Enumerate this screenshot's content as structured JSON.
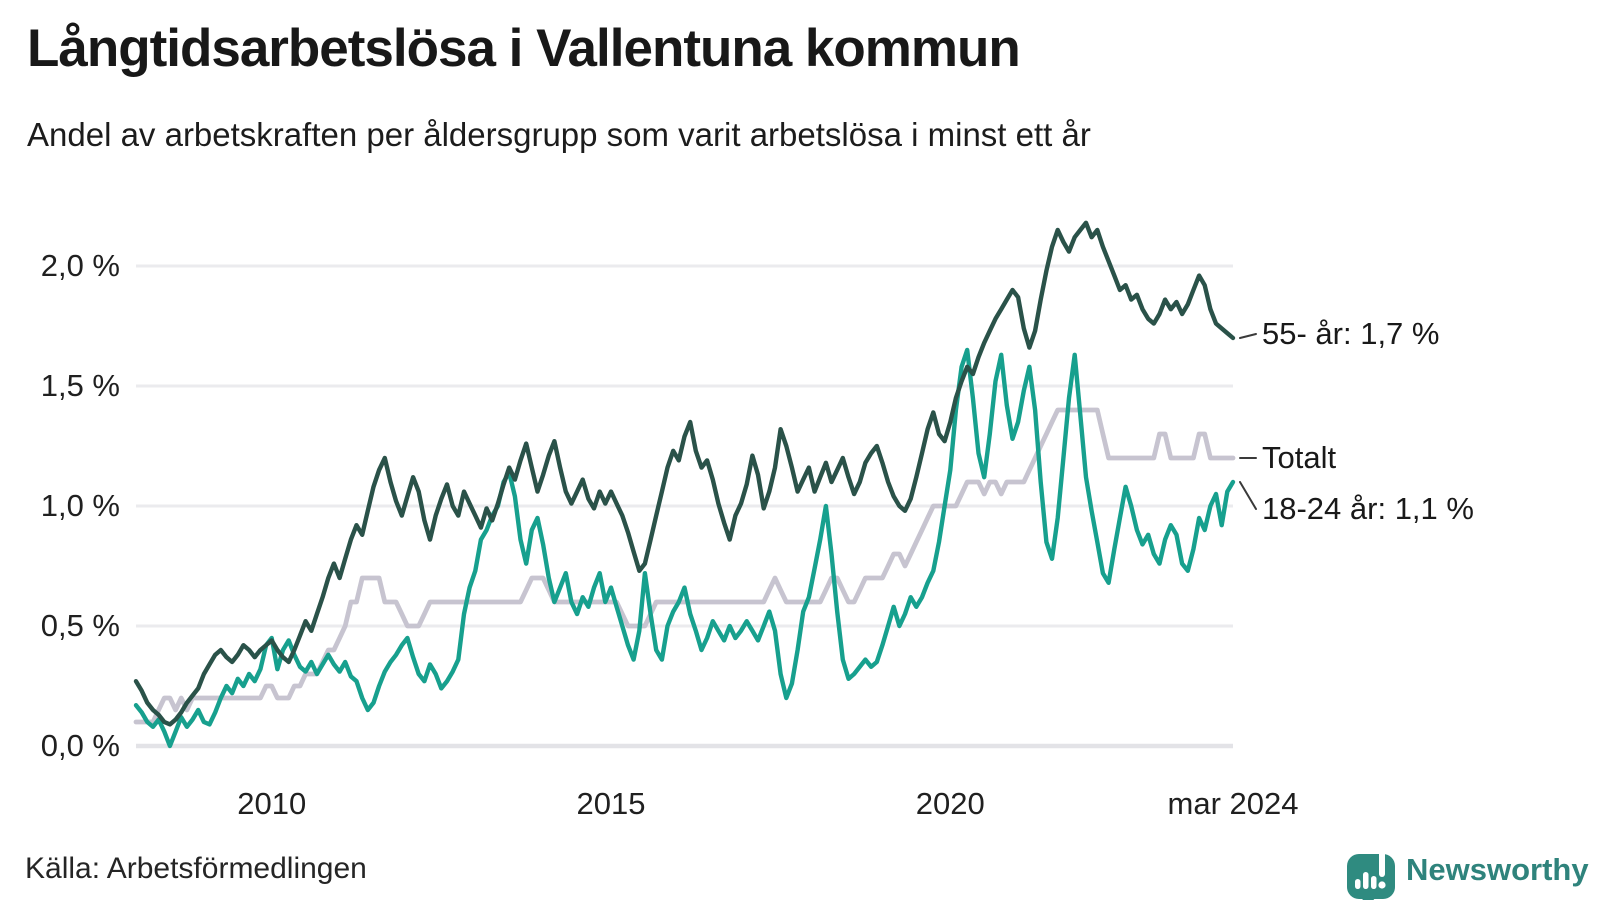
{
  "header": {
    "title": "Långtidsarbetslösa i Vallentuna kommun",
    "subtitle": "Andel av arbetskraften per åldersgrupp som varit arbetslösa i minst ett år"
  },
  "footer": {
    "source": "Källa: Arbetsförmedlingen",
    "brand_name": "Newsworthy",
    "brand_color": "#2f8b80"
  },
  "chart_data": {
    "type": "line",
    "title": "Långtidsarbetslösa i Vallentuna kommun",
    "subtitle": "Andel av arbetskraften per åldersgrupp som varit arbetslösa i minst ett år",
    "unit": "% av arbetskraften",
    "x_range": [
      2008.0,
      2024.1667
    ],
    "points_per_year": 12,
    "first_point": "jan 2008",
    "last_point": "mar 2024",
    "ylim": [
      0,
      2.3
    ],
    "grid": true,
    "legend_position": "right-end-labels",
    "colors": {
      "grid": "#ebebee",
      "baseline": "#e3e3e7",
      "connector": "#3a3a3a"
    },
    "y_ticks": [
      {
        "value": 0.0,
        "label": "0,0 %"
      },
      {
        "value": 0.5,
        "label": "0,5 %"
      },
      {
        "value": 1.0,
        "label": "1,0 %"
      },
      {
        "value": 1.5,
        "label": "1,5 %"
      },
      {
        "value": 2.0,
        "label": "2,0 %"
      }
    ],
    "x_ticks": [
      {
        "value": 2010.0,
        "label": "2010"
      },
      {
        "value": 2015.0,
        "label": "2015"
      },
      {
        "value": 2020.0,
        "label": "2020"
      },
      {
        "value": 2024.1667,
        "label": "mar 2024"
      }
    ],
    "series": [
      {
        "name": "55- år",
        "end_label": "55- år: 1,7 %",
        "last_value": 1.7,
        "color": "#2a5249",
        "values": [
          0.27,
          0.23,
          0.18,
          0.15,
          0.13,
          0.1,
          0.09,
          0.11,
          0.14,
          0.18,
          0.21,
          0.24,
          0.3,
          0.34,
          0.38,
          0.4,
          0.37,
          0.35,
          0.38,
          0.42,
          0.4,
          0.37,
          0.4,
          0.42,
          0.44,
          0.4,
          0.37,
          0.35,
          0.4,
          0.46,
          0.52,
          0.48,
          0.55,
          0.62,
          0.7,
          0.76,
          0.7,
          0.78,
          0.86,
          0.92,
          0.88,
          0.98,
          1.08,
          1.15,
          1.2,
          1.1,
          1.02,
          0.96,
          1.04,
          1.12,
          1.06,
          0.94,
          0.86,
          0.96,
          1.03,
          1.09,
          1.0,
          0.96,
          1.06,
          1.01,
          0.96,
          0.91,
          0.99,
          0.94,
          1.01,
          1.09,
          1.16,
          1.11,
          1.19,
          1.26,
          1.16,
          1.06,
          1.13,
          1.21,
          1.27,
          1.16,
          1.06,
          1.01,
          1.06,
          1.11,
          1.03,
          0.99,
          1.06,
          1.01,
          1.06,
          1.01,
          0.96,
          0.89,
          0.81,
          0.73,
          0.76,
          0.86,
          0.96,
          1.06,
          1.16,
          1.23,
          1.19,
          1.29,
          1.35,
          1.23,
          1.16,
          1.19,
          1.11,
          1.01,
          0.93,
          0.86,
          0.96,
          1.01,
          1.09,
          1.21,
          1.13,
          0.99,
          1.06,
          1.16,
          1.32,
          1.25,
          1.16,
          1.06,
          1.11,
          1.16,
          1.06,
          1.12,
          1.18,
          1.1,
          1.15,
          1.2,
          1.12,
          1.05,
          1.1,
          1.18,
          1.22,
          1.25,
          1.18,
          1.1,
          1.04,
          1.0,
          0.98,
          1.03,
          1.12,
          1.22,
          1.32,
          1.39,
          1.3,
          1.27,
          1.35,
          1.45,
          1.52,
          1.58,
          1.55,
          1.62,
          1.68,
          1.73,
          1.78,
          1.82,
          1.86,
          1.9,
          1.87,
          1.74,
          1.66,
          1.73,
          1.86,
          1.98,
          2.08,
          2.15,
          2.1,
          2.06,
          2.12,
          2.15,
          2.18,
          2.12,
          2.15,
          2.08,
          2.02,
          1.96,
          1.9,
          1.92,
          1.86,
          1.88,
          1.82,
          1.78,
          1.76,
          1.8,
          1.86,
          1.82,
          1.85,
          1.8,
          1.84,
          1.9,
          1.96,
          1.92,
          1.82,
          1.76,
          1.74,
          1.72,
          1.7
        ]
      },
      {
        "name": "Totalt",
        "end_label": "Totalt",
        "last_value": 1.2,
        "color": "#c7c4d0",
        "values": [
          0.1,
          0.1,
          0.1,
          0.1,
          0.15,
          0.2,
          0.2,
          0.15,
          0.2,
          0.15,
          0.2,
          0.2,
          0.2,
          0.2,
          0.2,
          0.2,
          0.2,
          0.2,
          0.2,
          0.2,
          0.2,
          0.2,
          0.2,
          0.25,
          0.25,
          0.2,
          0.2,
          0.2,
          0.25,
          0.25,
          0.3,
          0.3,
          0.3,
          0.35,
          0.4,
          0.4,
          0.45,
          0.5,
          0.6,
          0.6,
          0.7,
          0.7,
          0.7,
          0.7,
          0.6,
          0.6,
          0.6,
          0.55,
          0.5,
          0.5,
          0.5,
          0.55,
          0.6,
          0.6,
          0.6,
          0.6,
          0.6,
          0.6,
          0.6,
          0.6,
          0.6,
          0.6,
          0.6,
          0.6,
          0.6,
          0.6,
          0.6,
          0.6,
          0.6,
          0.65,
          0.7,
          0.7,
          0.7,
          0.65,
          0.6,
          0.6,
          0.6,
          0.6,
          0.6,
          0.6,
          0.6,
          0.6,
          0.6,
          0.6,
          0.6,
          0.6,
          0.55,
          0.5,
          0.5,
          0.5,
          0.5,
          0.55,
          0.6,
          0.6,
          0.6,
          0.6,
          0.6,
          0.6,
          0.6,
          0.6,
          0.6,
          0.6,
          0.6,
          0.6,
          0.6,
          0.6,
          0.6,
          0.6,
          0.6,
          0.6,
          0.6,
          0.6,
          0.65,
          0.7,
          0.65,
          0.6,
          0.6,
          0.6,
          0.6,
          0.6,
          0.6,
          0.6,
          0.65,
          0.7,
          0.7,
          0.65,
          0.6,
          0.6,
          0.65,
          0.7,
          0.7,
          0.7,
          0.7,
          0.75,
          0.8,
          0.8,
          0.75,
          0.8,
          0.85,
          0.9,
          0.95,
          1.0,
          1.0,
          1.0,
          1.0,
          1.0,
          1.05,
          1.1,
          1.1,
          1.1,
          1.05,
          1.1,
          1.1,
          1.05,
          1.1,
          1.1,
          1.1,
          1.1,
          1.15,
          1.2,
          1.25,
          1.3,
          1.35,
          1.4,
          1.4,
          1.4,
          1.4,
          1.4,
          1.4,
          1.4,
          1.4,
          1.3,
          1.2,
          1.2,
          1.2,
          1.2,
          1.2,
          1.2,
          1.2,
          1.2,
          1.2,
          1.3,
          1.3,
          1.2,
          1.2,
          1.2,
          1.2,
          1.2,
          1.3,
          1.3,
          1.2,
          1.2,
          1.2,
          1.2,
          1.2
        ]
      },
      {
        "name": "18-24 år",
        "end_label": "18-24 år: 1,1 %",
        "last_value": 1.1,
        "color": "#17a08e",
        "values": [
          0.17,
          0.14,
          0.1,
          0.08,
          0.11,
          0.06,
          0.0,
          0.06,
          0.12,
          0.08,
          0.11,
          0.15,
          0.1,
          0.09,
          0.14,
          0.2,
          0.25,
          0.22,
          0.28,
          0.25,
          0.3,
          0.27,
          0.32,
          0.42,
          0.45,
          0.32,
          0.4,
          0.44,
          0.38,
          0.33,
          0.31,
          0.35,
          0.3,
          0.34,
          0.38,
          0.34,
          0.31,
          0.35,
          0.29,
          0.27,
          0.2,
          0.15,
          0.18,
          0.25,
          0.31,
          0.35,
          0.38,
          0.42,
          0.45,
          0.37,
          0.3,
          0.27,
          0.34,
          0.3,
          0.24,
          0.27,
          0.31,
          0.36,
          0.55,
          0.66,
          0.73,
          0.86,
          0.9,
          0.96,
          1.0,
          1.1,
          1.14,
          1.04,
          0.86,
          0.76,
          0.9,
          0.95,
          0.84,
          0.7,
          0.6,
          0.66,
          0.72,
          0.6,
          0.55,
          0.62,
          0.58,
          0.66,
          0.72,
          0.6,
          0.66,
          0.58,
          0.5,
          0.42,
          0.36,
          0.48,
          0.72,
          0.55,
          0.4,
          0.36,
          0.5,
          0.56,
          0.6,
          0.66,
          0.55,
          0.48,
          0.4,
          0.45,
          0.52,
          0.48,
          0.44,
          0.5,
          0.45,
          0.48,
          0.52,
          0.48,
          0.44,
          0.5,
          0.56,
          0.48,
          0.3,
          0.2,
          0.26,
          0.4,
          0.56,
          0.62,
          0.74,
          0.86,
          1.0,
          0.8,
          0.56,
          0.36,
          0.28,
          0.3,
          0.33,
          0.36,
          0.33,
          0.35,
          0.42,
          0.5,
          0.58,
          0.5,
          0.55,
          0.62,
          0.58,
          0.62,
          0.68,
          0.73,
          0.85,
          1.0,
          1.15,
          1.4,
          1.58,
          1.65,
          1.45,
          1.22,
          1.12,
          1.3,
          1.52,
          1.63,
          1.42,
          1.28,
          1.35,
          1.48,
          1.58,
          1.4,
          1.1,
          0.85,
          0.78,
          0.95,
          1.2,
          1.45,
          1.63,
          1.38,
          1.12,
          0.98,
          0.85,
          0.72,
          0.68,
          0.82,
          0.95,
          1.08,
          1.0,
          0.9,
          0.84,
          0.88,
          0.8,
          0.76,
          0.86,
          0.92,
          0.88,
          0.76,
          0.73,
          0.82,
          0.95,
          0.9,
          1.0,
          1.05,
          0.92,
          1.06,
          1.1
        ]
      }
    ]
  }
}
